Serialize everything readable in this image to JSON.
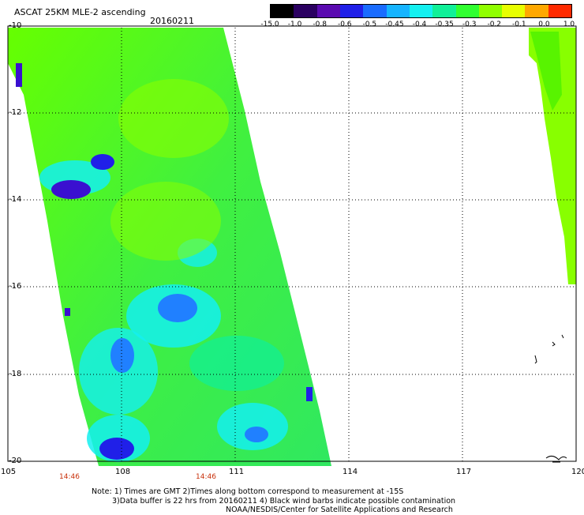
{
  "header": {
    "title": "ASCAT 25KM MLE-2 ascending",
    "date": "20160211"
  },
  "colorbar": {
    "labels": [
      "-15.0",
      "-1.0",
      "-0.8",
      "-0.6",
      "-0.5",
      "-0.45",
      "-0.4",
      "-0.35",
      "-0.3",
      "-0.2",
      "-0.1",
      "0.0",
      "1.0"
    ],
    "colors": [
      "#000000",
      "#2a0060",
      "#5a0ab0",
      "#2020e8",
      "#1a6cff",
      "#16b4ff",
      "#14f0f0",
      "#10f098",
      "#30ff30",
      "#90ff00",
      "#e8ff00",
      "#ffa800",
      "#ff2a00"
    ]
  },
  "axes": {
    "lat_labels": [
      "-10",
      "-12",
      "-14",
      "-16",
      "-18",
      "-20"
    ],
    "lon_labels": [
      "105",
      "108",
      "111",
      "114",
      "117",
      "120"
    ],
    "time_labels": [
      "14:46",
      "14:46"
    ]
  },
  "palette": {
    "green": "#44f000",
    "lime": "#88ff00",
    "cyan": "#00ffd8",
    "blue": "#2080ff",
    "purple": "#3a10d0"
  },
  "notes": {
    "line1": "Note: 1) Times are GMT 2)Times along bottom correspond to measurement at -15S",
    "line2": "3)Data buffer is 22 hrs from 20160211  4) Black wind barbs indicate possible contamination",
    "line3": "NOAA/NESDIS/Center for Satellite Applications and Research"
  }
}
